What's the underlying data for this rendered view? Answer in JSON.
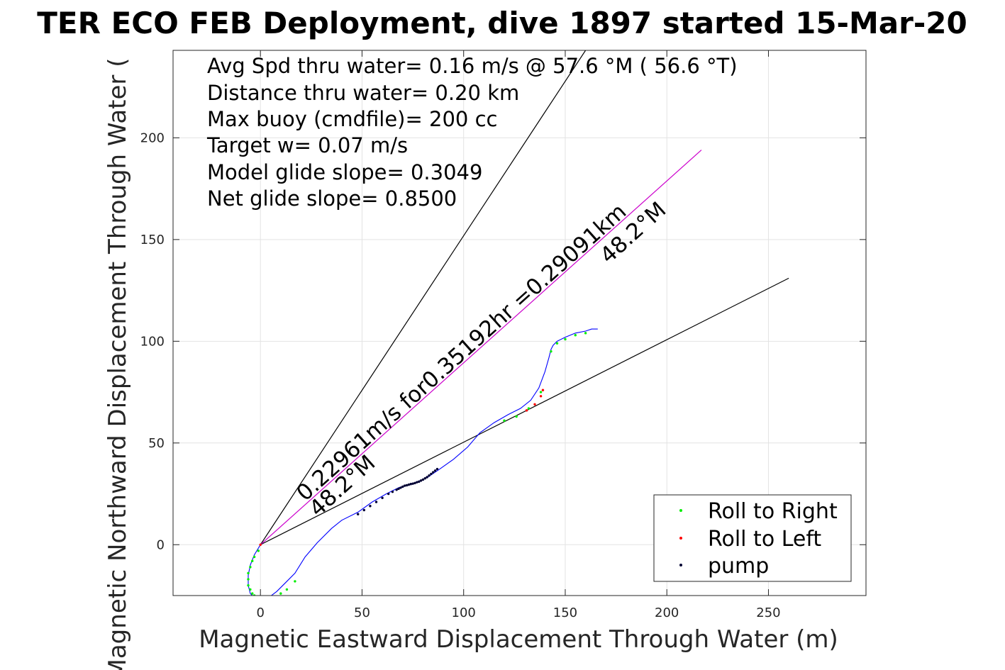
{
  "chart_data": {
    "type": "scatter",
    "title": "TER ECO FEB Deployment, dive 1897 started 15-Mar-20",
    "xlabel": "Magnetic Eastward Displacement Through Water (m)",
    "ylabel": "Magnetic Northward Displacement Through Water (",
    "xlim": [
      -43,
      298
    ],
    "ylim": [
      -25,
      243
    ],
    "xticks": [
      0,
      50,
      100,
      150,
      200,
      250
    ],
    "yticks": [
      0,
      50,
      100,
      150,
      200
    ],
    "grid": true,
    "legend_position": "bottom-right",
    "annotations": [
      "Avg Spd thru water=  0.16 m/s @  57.6 °M ( 56.6 °T)",
      "Distance thru water=  0.20 km",
      "Max buoy (cmdfile)= 200 cc",
      "Target w= 0.07 m/s",
      "Model glide slope= 0.3049",
      "Net glide slope= 0.8500"
    ],
    "line_labels": {
      "speed": "0.22961m/s for0.35192hr =0.29091km",
      "heading_upper": "48.2°M",
      "heading_lower": "48.2°M"
    },
    "reference_lines": [
      {
        "name": "upper-bound",
        "color": "#000000",
        "x": [
          0,
          160
        ],
        "y": [
          0,
          243
        ]
      },
      {
        "name": "lower-bound",
        "color": "#000000",
        "x": [
          0,
          260
        ],
        "y": [
          0,
          131
        ]
      },
      {
        "name": "target-heading",
        "color": "#cc00cc",
        "x": [
          0,
          217
        ],
        "y": [
          0,
          194
        ]
      }
    ],
    "track": {
      "color": "#0000ff",
      "x": [
        0,
        -3,
        -5,
        -6,
        -6,
        -5,
        -3,
        0,
        4,
        8,
        12,
        17,
        22,
        28,
        35,
        40,
        48,
        55,
        62,
        68,
        75,
        82,
        88,
        95,
        102,
        108,
        115,
        122,
        128,
        133,
        137,
        140,
        142,
        143,
        144,
        146,
        150,
        155,
        160,
        163,
        166
      ],
      "y": [
        0,
        -5,
        -10,
        -15,
        -20,
        -24,
        -26,
        -27,
        -26,
        -23,
        -19,
        -14,
        -6,
        1,
        8,
        12,
        16,
        21,
        25,
        28,
        30,
        33,
        37,
        42,
        48,
        55,
        60,
        64,
        67,
        71,
        77,
        85,
        92,
        96,
        98,
        100,
        102,
        104,
        105,
        106,
        106
      ]
    },
    "series": [
      {
        "name": "Roll to Right",
        "color": "#00ee00",
        "x": [
          -1,
          -3,
          -4,
          -5,
          -6,
          -6,
          -6,
          -5,
          -4,
          -3,
          -1,
          2,
          6,
          10,
          13,
          17,
          120,
          126,
          132,
          138,
          143,
          146,
          150,
          155,
          160
        ],
        "y": [
          -3,
          -6,
          -8,
          -11,
          -14,
          -17,
          -20,
          -22,
          -24,
          -25,
          -26,
          -27,
          -26,
          -24,
          -22,
          -18,
          61,
          63,
          67,
          75,
          95,
          99,
          101,
          103,
          104
        ]
      },
      {
        "name": "Roll to Left",
        "color": "#ff0000",
        "x": [
          0,
          131,
          135,
          138,
          139
        ],
        "y": [
          0,
          66,
          69,
          73,
          76
        ]
      },
      {
        "name": "pump",
        "color": "#000033",
        "x": [
          48,
          51,
          54,
          57,
          60,
          63,
          65,
          67,
          68,
          69,
          70,
          71,
          72,
          73,
          74,
          75,
          76,
          77,
          78,
          79,
          80,
          81,
          82,
          83,
          84,
          85,
          86,
          87
        ],
        "y": [
          15,
          17,
          19,
          21,
          23,
          25,
          26,
          27,
          27.5,
          28,
          28.5,
          29,
          29.2,
          29.5,
          29.8,
          30,
          30.3,
          30.7,
          31,
          31.5,
          32,
          32.6,
          33.2,
          34,
          34.8,
          35.6,
          36.4,
          37.2
        ]
      }
    ]
  }
}
